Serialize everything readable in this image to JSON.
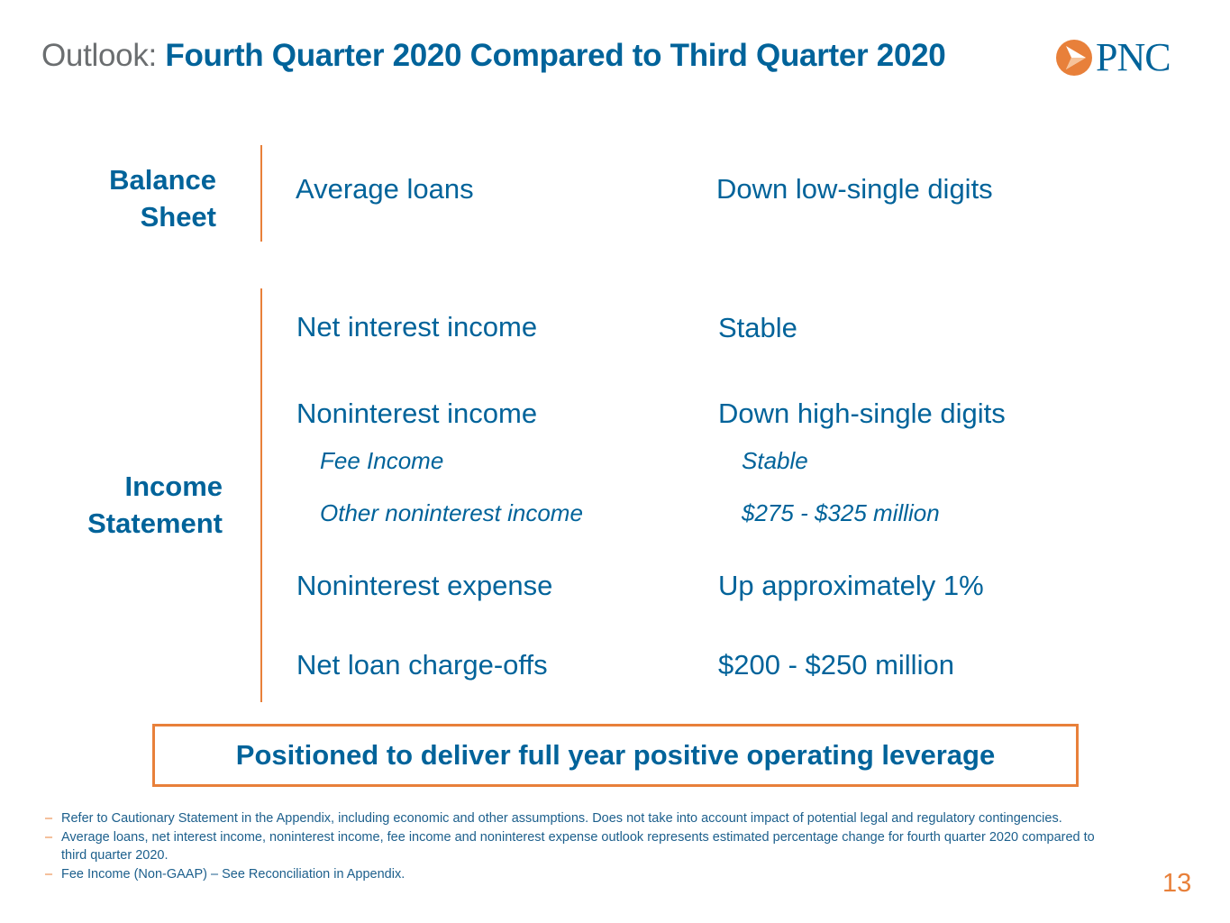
{
  "header": {
    "prefix": "Outlook:",
    "title": "Fourth Quarter 2020 Compared to Third Quarter 2020"
  },
  "logo": {
    "icon": "pnc-triangle-mark-icon",
    "text": "PNC",
    "colors": {
      "mark": "#e8803a",
      "text": "#00639a"
    }
  },
  "sections": {
    "balance_sheet": {
      "label_line1": "Balance",
      "label_line2": "Sheet",
      "rows": [
        {
          "label": "Average loans",
          "value": "Down low-single digits"
        }
      ]
    },
    "income_statement": {
      "label_line1": "Income",
      "label_line2": "Statement",
      "rows": [
        {
          "label": "Net interest income",
          "value": "Stable"
        },
        {
          "label": "Noninterest income",
          "value": "Down high-single digits"
        },
        {
          "label": "Fee Income",
          "value": "Stable"
        },
        {
          "label": "Other noninterest income",
          "value": "$275 - $325 million"
        },
        {
          "label": "Noninterest expense",
          "value": "Up approximately 1%"
        },
        {
          "label": "Net loan charge-offs",
          "value": "$200 - $250 million"
        }
      ]
    }
  },
  "callout": "Positioned to deliver full year positive operating leverage",
  "footnotes": [
    {
      "dash": "–",
      "text": "Refer to Cautionary Statement in the Appendix, including economic and other assumptions. Does not take into account impact of potential legal and regulatory contingencies."
    },
    {
      "dash": "–",
      "text": "Average loans, net interest income, noninterest income, fee income and noninterest expense outlook represents estimated percentage change for fourth quarter 2020 compared to third quarter 2020."
    },
    {
      "dash": "–",
      "text": "Fee Income (Non-GAAP) – See Reconciliation in Appendix."
    }
  ],
  "page_number": "13",
  "colors": {
    "primary": "#00639a",
    "accent": "#e8803a",
    "muted": "#6b6e70"
  }
}
